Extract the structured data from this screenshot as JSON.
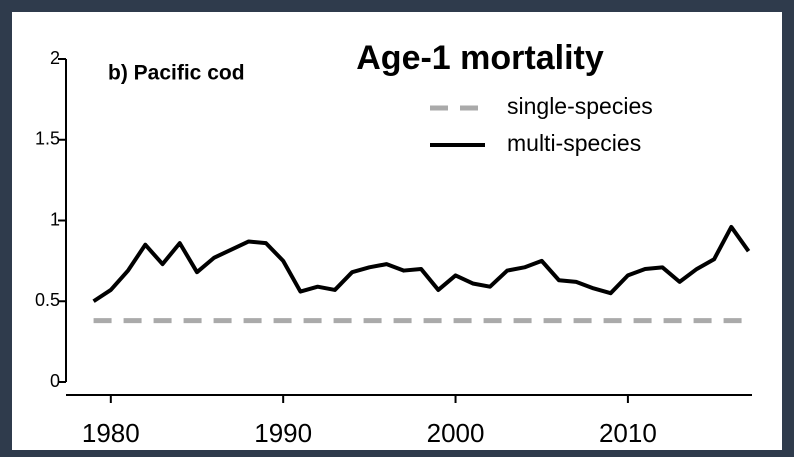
{
  "chart_data": {
    "type": "line",
    "title": "Age-1 mortality",
    "subtitle": "b) Pacific cod",
    "x": [
      1979,
      1980,
      1981,
      1982,
      1983,
      1984,
      1985,
      1986,
      1987,
      1988,
      1989,
      1990,
      1991,
      1992,
      1993,
      1994,
      1995,
      1996,
      1997,
      1998,
      1999,
      2000,
      2001,
      2002,
      2003,
      2004,
      2005,
      2006,
      2007,
      2008,
      2009,
      2010,
      2011,
      2012,
      2013,
      2014,
      2015,
      2016,
      2017
    ],
    "series": [
      {
        "name": "single-species",
        "color": "#aaaaaa",
        "dashed": true,
        "values": [
          0.38,
          0.38,
          0.38,
          0.38,
          0.38,
          0.38,
          0.38,
          0.38,
          0.38,
          0.38,
          0.38,
          0.38,
          0.38,
          0.38,
          0.38,
          0.38,
          0.38,
          0.38,
          0.38,
          0.38,
          0.38,
          0.38,
          0.38,
          0.38,
          0.38,
          0.38,
          0.38,
          0.38,
          0.38,
          0.38,
          0.38,
          0.38,
          0.38,
          0.38,
          0.38,
          0.38,
          0.38,
          0.38,
          0.38
        ]
      },
      {
        "name": "multi-species",
        "color": "#000000",
        "dashed": false,
        "values": [
          0.5,
          0.57,
          0.69,
          0.85,
          0.73,
          0.86,
          0.68,
          0.77,
          0.82,
          0.87,
          0.86,
          0.75,
          0.56,
          0.59,
          0.57,
          0.68,
          0.71,
          0.73,
          0.69,
          0.7,
          0.57,
          0.66,
          0.61,
          0.59,
          0.69,
          0.71,
          0.75,
          0.63,
          0.62,
          0.58,
          0.55,
          0.66,
          0.7,
          0.71,
          0.62,
          0.7,
          0.76,
          0.96,
          0.81
        ]
      }
    ],
    "xlim": [
      1977.4,
      2017.2
    ],
    "xticks": [
      1980,
      1990,
      2000,
      2010
    ],
    "ylim": [
      0,
      2
    ],
    "yticks": [
      0,
      0.5,
      1,
      1.5,
      2
    ],
    "grid": false
  }
}
